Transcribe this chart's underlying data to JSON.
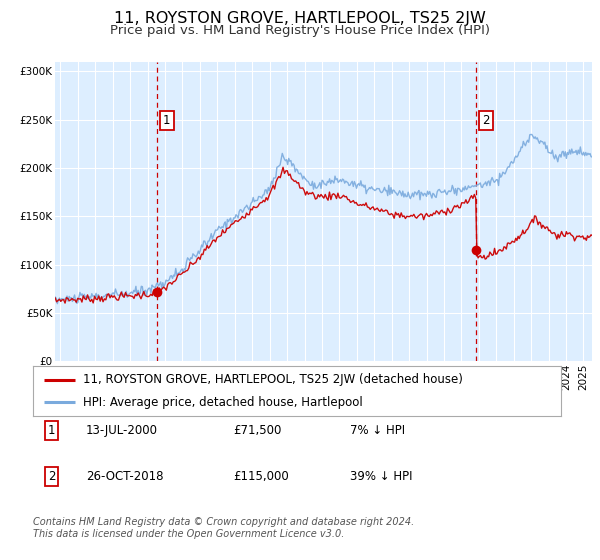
{
  "title": "11, ROYSTON GROVE, HARTLEPOOL, TS25 2JW",
  "subtitle": "Price paid vs. HM Land Registry's House Price Index (HPI)",
  "legend_label_red": "11, ROYSTON GROVE, HARTLEPOOL, TS25 2JW (detached house)",
  "legend_label_blue": "HPI: Average price, detached house, Hartlepool",
  "annotation1_label": "1",
  "annotation1_date": "13-JUL-2000",
  "annotation1_price": "£71,500",
  "annotation1_hpi": "7% ↓ HPI",
  "annotation2_label": "2",
  "annotation2_date": "26-OCT-2018",
  "annotation2_price": "£115,000",
  "annotation2_hpi": "39% ↓ HPI",
  "sale1_date_num": 2000.54,
  "sale1_price": 71500,
  "sale2_date_num": 2018.82,
  "sale2_price": 115000,
  "sale2_price_before": 170000,
  "red_color": "#cc0000",
  "blue_color": "#7aaadd",
  "dashed_line_color": "#cc0000",
  "plot_bg_color": "#ddeeff",
  "outer_bg_color": "#ffffff",
  "ylim": [
    0,
    310000
  ],
  "xlim_start": 1994.7,
  "xlim_end": 2025.5,
  "footer_text": "Contains HM Land Registry data © Crown copyright and database right 2024.\nThis data is licensed under the Open Government Licence v3.0.",
  "title_fontsize": 11.5,
  "subtitle_fontsize": 9.5,
  "tick_fontsize": 7.5,
  "legend_fontsize": 8.5,
  "annotation_fontsize": 8.5
}
